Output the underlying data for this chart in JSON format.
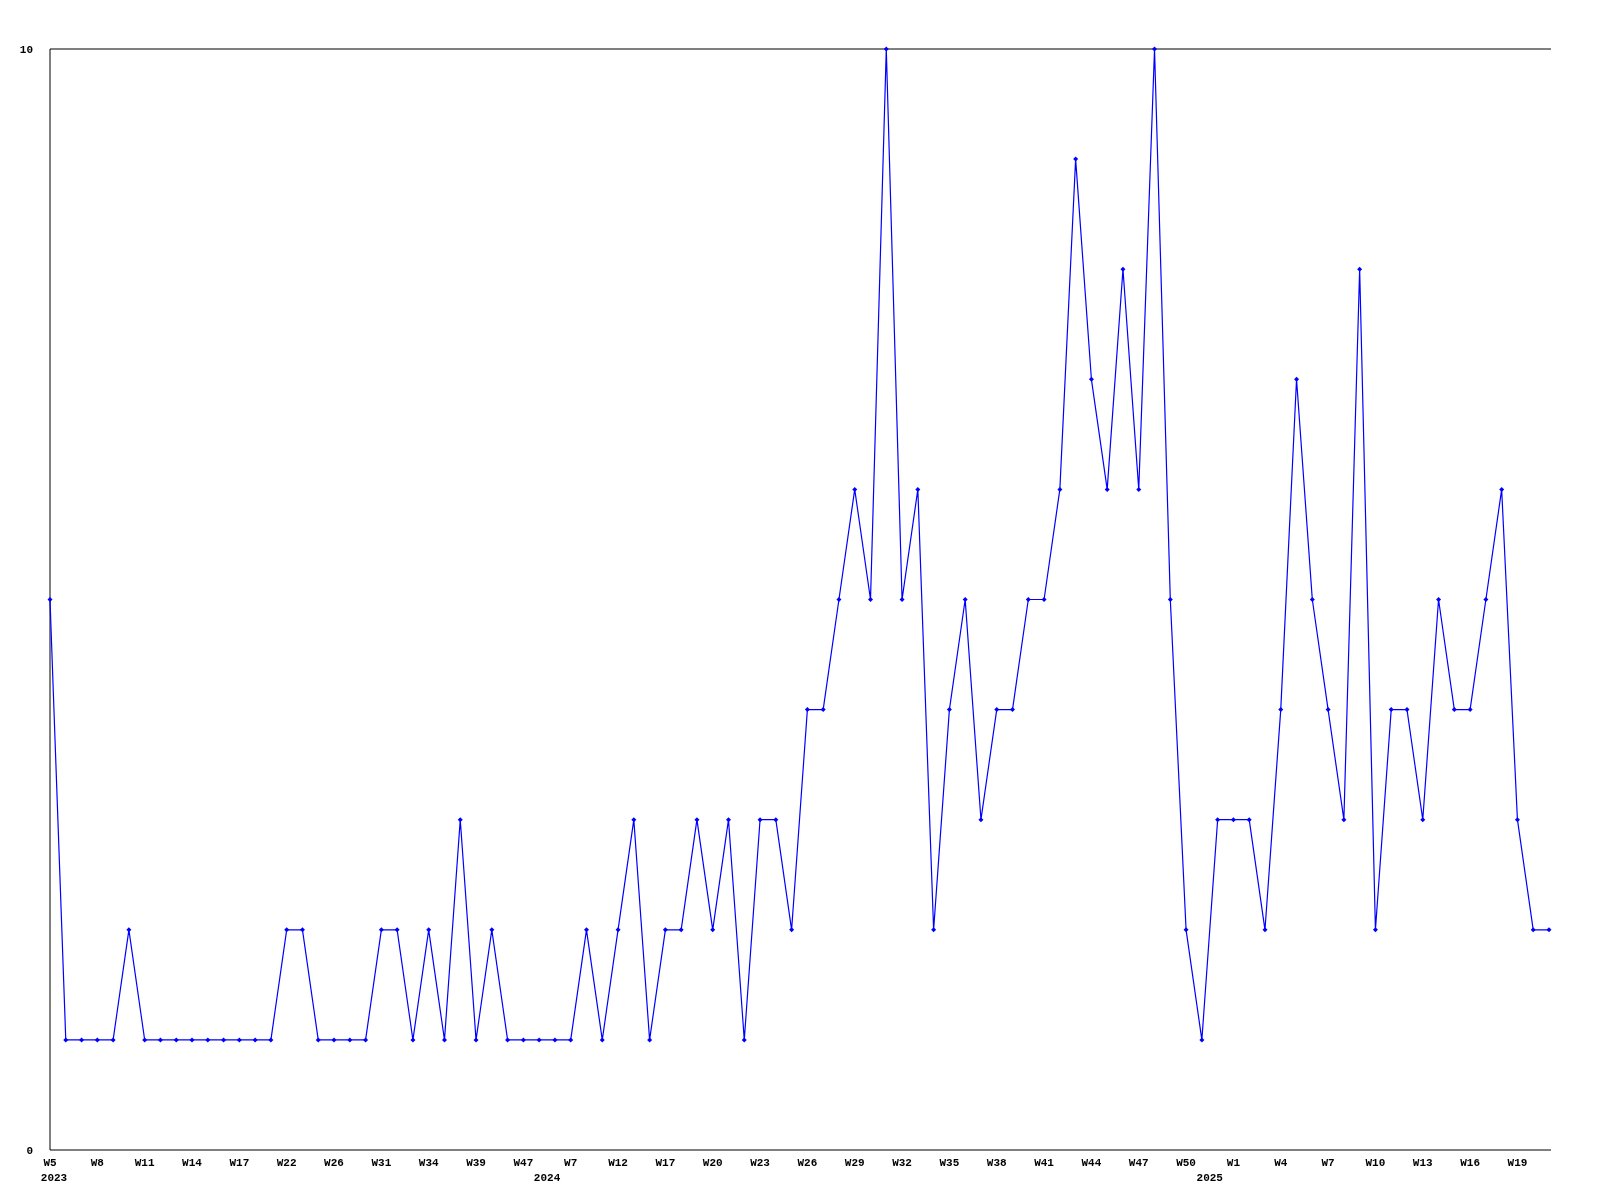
{
  "chart_data": {
    "type": "line",
    "categories": [
      "W5",
      null,
      null,
      "W8",
      null,
      null,
      "W11",
      null,
      null,
      "W14",
      null,
      null,
      "W17",
      null,
      null,
      "W22",
      null,
      null,
      "W26",
      null,
      null,
      "W31",
      null,
      null,
      "W34",
      null,
      null,
      "W39",
      null,
      null,
      "W47",
      null,
      null,
      "W7",
      null,
      null,
      "W12",
      null,
      null,
      "W17",
      null,
      null,
      "W20",
      null,
      null,
      "W23",
      null,
      null,
      "W26",
      null,
      null,
      "W29",
      null,
      null,
      "W32",
      null,
      null,
      "W35",
      null,
      null,
      "W38",
      null,
      null,
      "W41",
      null,
      null,
      "W44",
      null,
      null,
      "W47",
      null,
      null,
      "W50",
      null,
      null,
      "W1",
      null,
      null,
      "W4",
      null,
      null,
      "W7",
      null,
      null,
      "W10",
      null,
      null,
      "W13",
      null,
      null,
      "W16",
      null,
      null,
      "W19",
      null,
      null
    ],
    "series": [
      {
        "color": "#0000ff",
        "values": [
          5,
          1,
          1,
          1,
          1,
          2,
          1,
          1,
          1,
          1,
          1,
          1,
          1,
          1,
          1,
          2,
          2,
          1,
          1,
          1,
          1,
          2,
          2,
          1,
          2,
          1,
          3,
          1,
          2,
          1,
          1,
          1,
          1,
          1,
          2,
          1,
          2,
          3,
          1,
          2,
          2,
          3,
          2,
          3,
          1,
          3,
          3,
          2,
          4,
          4,
          5,
          6,
          5,
          10,
          5,
          6,
          2,
          4,
          5,
          3,
          4,
          4,
          5,
          5,
          6,
          9,
          7,
          6,
          8,
          6,
          10,
          5,
          2,
          1,
          3,
          3,
          3,
          2,
          4,
          7,
          5,
          4,
          3,
          8,
          2,
          4,
          4,
          3,
          5,
          4,
          4,
          5,
          6,
          3,
          2,
          2
        ]
      }
    ],
    "ylim": [
      0,
      10
    ],
    "yticks": [
      0,
      10
    ],
    "marker": "diamond",
    "line_style": "solid",
    "annotations": [
      "2023",
      "2024",
      "2025"
    ]
  }
}
